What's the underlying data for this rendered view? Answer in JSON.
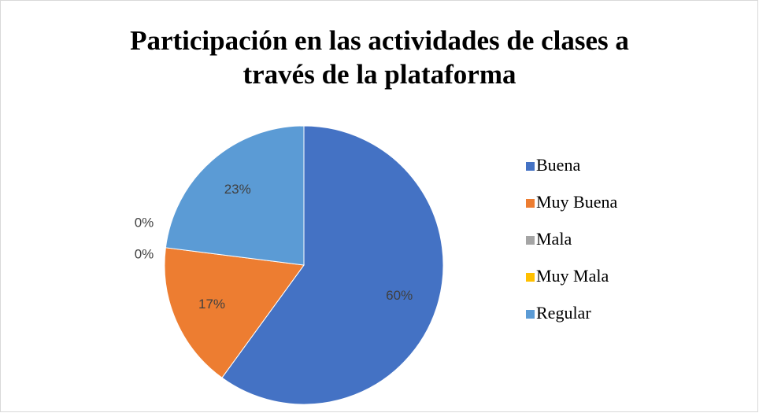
{
  "chart_data": {
    "type": "pie",
    "title": "Participación en las actividades de clases a través de la plataforma",
    "categories": [
      "Buena",
      "Muy Buena",
      "Mala",
      "Muy Mala",
      "Regular"
    ],
    "values": [
      60,
      17,
      0,
      0,
      23
    ],
    "value_labels": [
      "60%",
      "17%",
      "0%",
      "0%",
      "23%"
    ],
    "colors": [
      "#4472c4",
      "#ed7d31",
      "#a5a5a5",
      "#ffc000",
      "#5b9bd5"
    ],
    "legend": "right"
  }
}
